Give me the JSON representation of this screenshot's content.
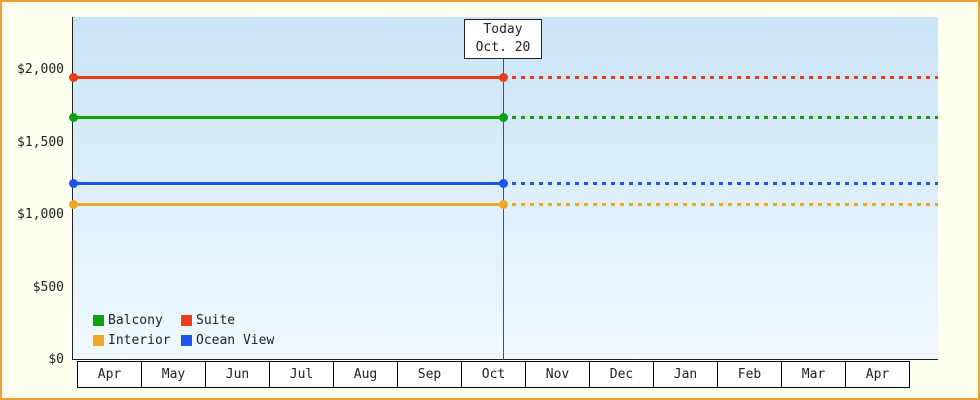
{
  "chart_data": {
    "type": "line",
    "title": "",
    "xlabel": "",
    "ylabel": "",
    "x_categories": [
      "Apr",
      "May",
      "Jun",
      "Jul",
      "Aug",
      "Sep",
      "Oct",
      "Nov",
      "Dec",
      "Jan",
      "Feb",
      "Mar",
      "Apr"
    ],
    "y_ticks": [
      {
        "value": 0,
        "label": "$0"
      },
      {
        "value": 500,
        "label": "$500"
      },
      {
        "value": 1000,
        "label": "$1,000"
      },
      {
        "value": 1500,
        "label": "$1,500"
      },
      {
        "value": 2000,
        "label": "$2,000"
      }
    ],
    "ylim": [
      0,
      2150
    ],
    "grid": false,
    "series": [
      {
        "name": "Suite",
        "color": "#e63d1a",
        "value": 1950,
        "style_before_today": "solid",
        "style_after_today": "dotted"
      },
      {
        "name": "Balcony",
        "color": "#10a010",
        "value": 1670,
        "style_before_today": "solid",
        "style_after_today": "dotted"
      },
      {
        "name": "Ocean View",
        "color": "#1b56e8",
        "value": 1220,
        "style_before_today": "solid",
        "style_after_today": "dotted"
      },
      {
        "name": "Interior",
        "color": "#f0a726",
        "value": 1075,
        "style_before_today": "solid",
        "style_after_today": "dotted"
      }
    ],
    "today_marker": {
      "line1": "Today",
      "line2": "Oct. 20",
      "x_category": "Oct"
    },
    "legend": [
      {
        "label": "Balcony",
        "color": "#10a010"
      },
      {
        "label": "Suite",
        "color": "#e63d1a"
      },
      {
        "label": "Interior",
        "color": "#f0a726"
      },
      {
        "label": "Ocean View",
        "color": "#1b56e8"
      }
    ],
    "legend_position": "bottom-left-inside"
  },
  "theme": {
    "frame_background": "#fffff0",
    "frame_border": "#f0a030",
    "plot_gradient_top": "#c9e3f6",
    "plot_gradient_bottom": "#f0f9fe",
    "axis_color": "#222222",
    "text_color": "#222222"
  }
}
